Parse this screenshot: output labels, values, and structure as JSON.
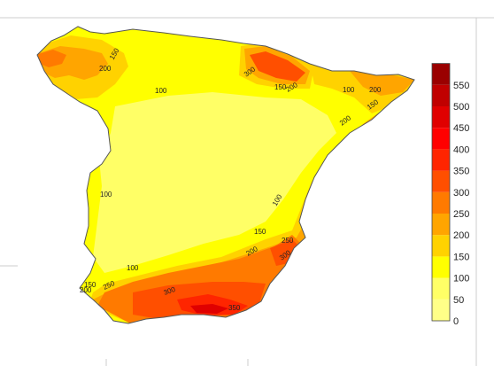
{
  "map": {
    "region": "Spain",
    "contour_labels": [
      {
        "id": "c150-galicia",
        "text": "150"
      },
      {
        "id": "c200-galicia",
        "text": "200"
      },
      {
        "id": "c100-north",
        "text": "100"
      },
      {
        "id": "c300-cantabria",
        "text": "300"
      },
      {
        "id": "c150-cantabria",
        "text": "150"
      },
      {
        "id": "c200-cantabria",
        "text": "200"
      },
      {
        "id": "c100-east",
        "text": "100"
      },
      {
        "id": "c200-catalonia",
        "text": "200"
      },
      {
        "id": "c150-catalonia",
        "text": "150"
      },
      {
        "id": "c200-valencia",
        "text": "200"
      },
      {
        "id": "c100-west",
        "text": "100"
      },
      {
        "id": "c100-center",
        "text": "100"
      },
      {
        "id": "c150-murcia",
        "text": "150"
      },
      {
        "id": "c250-murcia",
        "text": "250"
      },
      {
        "id": "c200-murcia",
        "text": "200"
      },
      {
        "id": "c300-murcia",
        "text": "300"
      },
      {
        "id": "c100-south",
        "text": "100"
      },
      {
        "id": "c150-cadiz",
        "text": "150"
      },
      {
        "id": "c200-cadiz",
        "text": "200"
      },
      {
        "id": "c250-cadiz",
        "text": "250"
      },
      {
        "id": "c300-andalusia",
        "text": "300"
      },
      {
        "id": "c350-andalusia",
        "text": "350"
      }
    ]
  },
  "legend": {
    "colors": [
      "#ffff88",
      "#ffff66",
      "#ffff00",
      "#ffd200",
      "#ffa500",
      "#ff7a00",
      "#ff4f00",
      "#ff2500",
      "#ff0000",
      "#e00000",
      "#c00000",
      "#9a0000"
    ],
    "tick_labels": [
      "0",
      "50",
      "100",
      "150",
      "200",
      "250",
      "300",
      "350",
      "400",
      "450",
      "500",
      "550"
    ]
  }
}
